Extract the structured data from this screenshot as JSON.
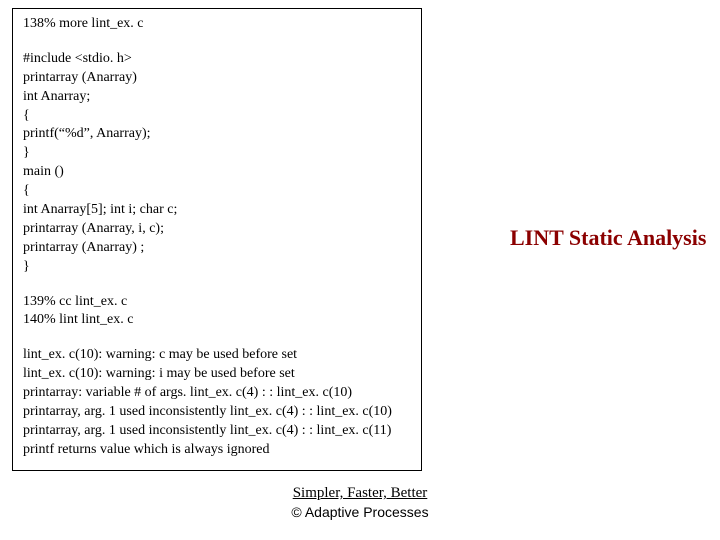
{
  "code": {
    "lines": [
      "138% more lint_ex. c",
      "",
      "#include <stdio. h>",
      "printarray (Anarray)",
      " int Anarray;",
      "{",
      " printf(“%d”, Anarray);",
      "}",
      "main ()",
      "{",
      " int Anarray[5]; int i; char c;",
      " printarray (Anarray, i, c);",
      " printarray (Anarray) ;",
      "}",
      "",
      "139% cc lint_ex. c",
      "140% lint lint_ex. c",
      "",
      "lint_ex. c(10): warning: c may be used before set",
      "lint_ex. c(10): warning: i may be used before set",
      "printarray: variable # of args. lint_ex. c(4) : : lint_ex. c(10)",
      "printarray, arg. 1 used inconsistently lint_ex. c(4) : : lint_ex. c(10)",
      "printarray, arg. 1 used inconsistently lint_ex. c(4) : : lint_ex. c(11)",
      "printf returns value which is always ignored"
    ]
  },
  "heading": {
    "text": "LINT Static Analysis",
    "color": "#8b0000",
    "fontsize": 22
  },
  "footer": {
    "tagline": "Simpler, Faster, Better",
    "copyright": "© Adaptive Processes"
  },
  "colors": {
    "background": "#ffffff",
    "border": "#000000",
    "text": "#000000",
    "heading": "#8b0000"
  }
}
